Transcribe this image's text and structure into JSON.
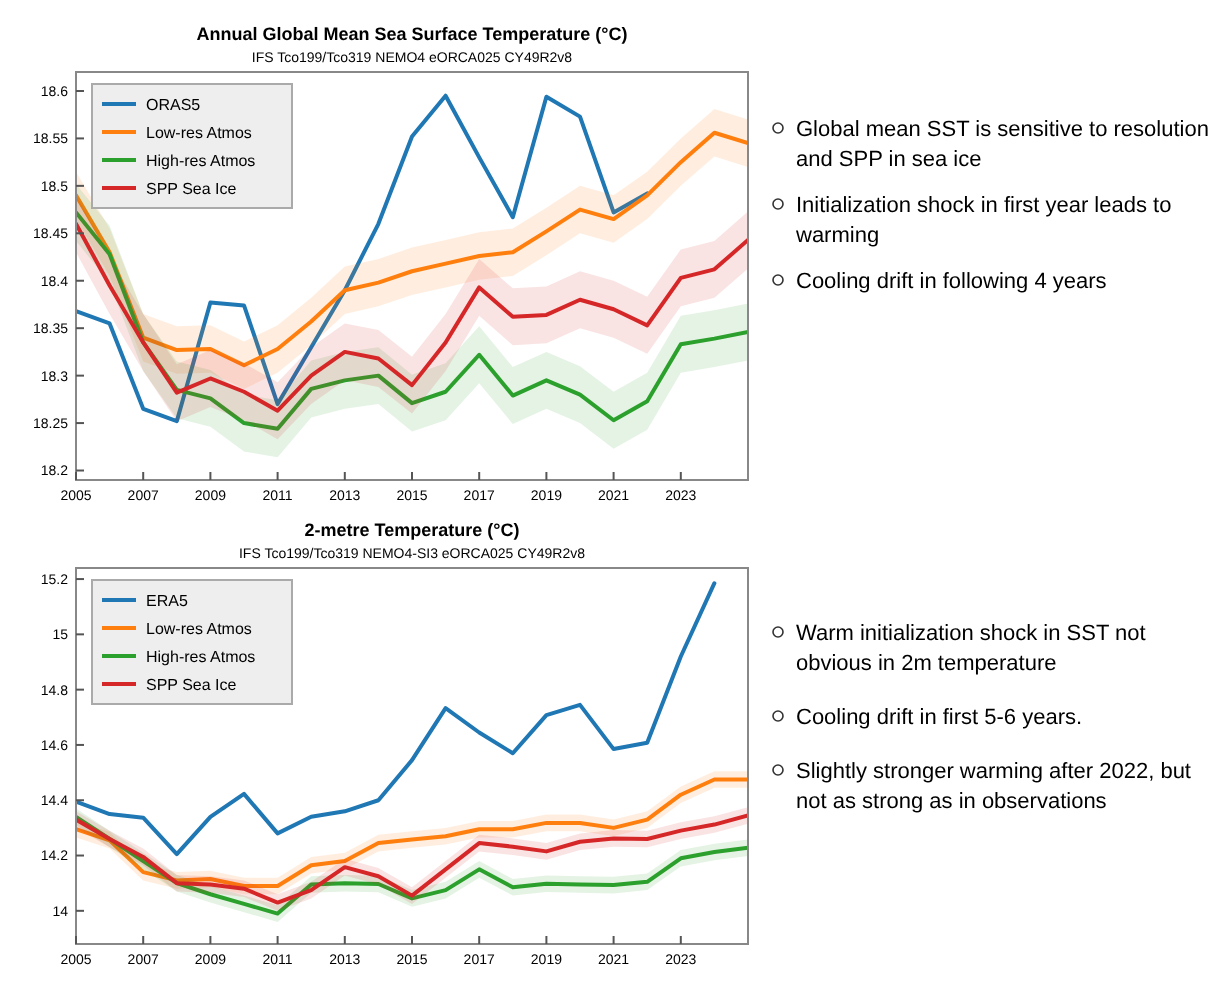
{
  "chart_data": [
    {
      "type": "line",
      "title": "Annual Global Mean Sea Surface Temperature (°C)",
      "subtitle": "IFS Tco199/Tco319    NEMO4 eORCA025    CY49R2v8",
      "x": [
        2005,
        2006,
        2007,
        2008,
        2009,
        2010,
        2011,
        2012,
        2013,
        2014,
        2015,
        2016,
        2017,
        2018,
        2019,
        2020,
        2021,
        2022,
        2023,
        2024,
        2025
      ],
      "xlim": [
        2005,
        2025
      ],
      "xticks": [
        2005,
        2007,
        2009,
        2011,
        2013,
        2015,
        2017,
        2019,
        2021,
        2023
      ],
      "ylim": [
        18.19,
        18.62
      ],
      "yticks": [
        18.2,
        18.25,
        18.3,
        18.35,
        18.4,
        18.45,
        18.5,
        18.55,
        18.6
      ],
      "legend": "top left",
      "grid": false,
      "marker": "none",
      "line_style": "solid",
      "series": [
        {
          "name": "ORAS5",
          "color": "#1f77b4",
          "x": [
            2005,
            2006,
            2007,
            2008,
            2009,
            2010,
            2011,
            2012,
            2013,
            2014,
            2015,
            2016,
            2017,
            2018,
            2019,
            2020,
            2021,
            2022
          ],
          "values": [
            18.368,
            18.355,
            18.265,
            18.252,
            18.377,
            18.374,
            18.27,
            18.33,
            18.39,
            18.46,
            18.552,
            18.595,
            18.53,
            18.467,
            18.594,
            18.573,
            18.472,
            18.492
          ]
        },
        {
          "name": "Low-res Atmos",
          "color": "#ff7f0e",
          "values": [
            18.49,
            18.43,
            18.34,
            18.327,
            18.328,
            18.311,
            18.328,
            18.357,
            18.39,
            18.398,
            18.41,
            18.418,
            18.426,
            18.43,
            18.452,
            18.475,
            18.465,
            18.49,
            18.525,
            18.556,
            18.545
          ],
          "lower": [
            18.465,
            18.405,
            18.315,
            18.302,
            18.303,
            18.286,
            18.303,
            18.332,
            18.365,
            18.373,
            18.385,
            18.393,
            18.401,
            18.405,
            18.427,
            18.45,
            18.44,
            18.465,
            18.5,
            18.531,
            18.52
          ],
          "upper": [
            18.515,
            18.455,
            18.365,
            18.352,
            18.353,
            18.336,
            18.353,
            18.382,
            18.415,
            18.423,
            18.435,
            18.443,
            18.451,
            18.455,
            18.477,
            18.5,
            18.49,
            18.515,
            18.55,
            18.581,
            18.57
          ]
        },
        {
          "name": "High-res Atmos",
          "color": "#2ca02c",
          "values": [
            18.472,
            18.428,
            18.335,
            18.285,
            18.276,
            18.25,
            18.244,
            18.286,
            18.295,
            18.3,
            18.271,
            18.283,
            18.322,
            18.279,
            18.295,
            18.28,
            18.253,
            18.273,
            18.333,
            18.339,
            18.346
          ],
          "lower": [
            18.442,
            18.398,
            18.305,
            18.255,
            18.246,
            18.22,
            18.214,
            18.256,
            18.265,
            18.27,
            18.241,
            18.253,
            18.292,
            18.249,
            18.265,
            18.25,
            18.223,
            18.243,
            18.303,
            18.309,
            18.316
          ],
          "upper": [
            18.502,
            18.458,
            18.365,
            18.315,
            18.306,
            18.28,
            18.274,
            18.316,
            18.325,
            18.33,
            18.301,
            18.313,
            18.352,
            18.309,
            18.325,
            18.31,
            18.283,
            18.303,
            18.363,
            18.369,
            18.376
          ]
        },
        {
          "name": "SPP Sea Ice",
          "color": "#d62728",
          "values": [
            18.46,
            18.395,
            18.335,
            18.282,
            18.297,
            18.283,
            18.263,
            18.3,
            18.325,
            18.318,
            18.29,
            18.335,
            18.393,
            18.362,
            18.364,
            18.38,
            18.37,
            18.353,
            18.403,
            18.412,
            18.443
          ],
          "lower": [
            18.43,
            18.365,
            18.305,
            18.252,
            18.267,
            18.253,
            18.233,
            18.27,
            18.295,
            18.288,
            18.26,
            18.305,
            18.363,
            18.332,
            18.334,
            18.35,
            18.34,
            18.323,
            18.373,
            18.382,
            18.413
          ],
          "upper": [
            18.49,
            18.425,
            18.365,
            18.312,
            18.327,
            18.313,
            18.293,
            18.33,
            18.355,
            18.348,
            18.32,
            18.365,
            18.423,
            18.392,
            18.394,
            18.41,
            18.4,
            18.383,
            18.433,
            18.442,
            18.473
          ]
        }
      ],
      "annotations": [
        "Global mean SST is sensitive to resolution and SPP in sea ice",
        "Initialization shock in first year leads to warming",
        "Cooling drift in following 4 years"
      ]
    },
    {
      "type": "line",
      "title": "2-metre Temperature (°C)",
      "subtitle": "IFS Tco199/Tco319    NEMO4-SI3 eORCA025    CY49R2v8",
      "x": [
        2005,
        2006,
        2007,
        2008,
        2009,
        2010,
        2011,
        2012,
        2013,
        2014,
        2015,
        2016,
        2017,
        2018,
        2019,
        2020,
        2021,
        2022,
        2023,
        2024,
        2025
      ],
      "xlim": [
        2005,
        2025
      ],
      "xticks": [
        2005,
        2007,
        2009,
        2011,
        2013,
        2015,
        2017,
        2019,
        2021,
        2023
      ],
      "ylim": [
        13.88,
        15.24
      ],
      "yticks": [
        14,
        14.2,
        14.4,
        14.6,
        14.8,
        15,
        15.2
      ],
      "legend": "top left",
      "grid": false,
      "marker": "none",
      "line_style": "solid",
      "series": [
        {
          "name": "ERA5",
          "color": "#1f77b4",
          "x": [
            2005,
            2006,
            2007,
            2008,
            2009,
            2010,
            2011,
            2012,
            2013,
            2014,
            2015,
            2016,
            2017,
            2018,
            2019,
            2020,
            2021,
            2022,
            2023,
            2024
          ],
          "values": [
            14.395,
            14.35,
            14.337,
            14.205,
            14.34,
            14.423,
            14.28,
            14.34,
            14.36,
            14.4,
            14.545,
            14.733,
            14.645,
            14.57,
            14.708,
            14.745,
            14.585,
            14.608,
            14.92,
            15.185
          ]
        },
        {
          "name": "Low-res Atmos",
          "color": "#ff7f0e",
          "values": [
            14.295,
            14.255,
            14.14,
            14.11,
            14.115,
            14.09,
            14.09,
            14.165,
            14.18,
            14.245,
            14.258,
            14.27,
            14.295,
            14.295,
            14.318,
            14.318,
            14.3,
            14.33,
            14.42,
            14.475,
            14.475
          ],
          "lower": [
            14.265,
            14.225,
            14.11,
            14.08,
            14.085,
            14.06,
            14.06,
            14.135,
            14.15,
            14.215,
            14.228,
            14.24,
            14.265,
            14.265,
            14.288,
            14.288,
            14.27,
            14.3,
            14.39,
            14.445,
            14.445
          ],
          "upper": [
            14.325,
            14.285,
            14.17,
            14.14,
            14.145,
            14.12,
            14.12,
            14.195,
            14.21,
            14.275,
            14.288,
            14.3,
            14.325,
            14.325,
            14.348,
            14.348,
            14.33,
            14.36,
            14.45,
            14.505,
            14.505
          ]
        },
        {
          "name": "High-res Atmos",
          "color": "#2ca02c",
          "values": [
            14.34,
            14.26,
            14.18,
            14.1,
            14.06,
            14.025,
            13.99,
            14.095,
            14.1,
            14.097,
            14.045,
            14.075,
            14.15,
            14.085,
            14.098,
            14.095,
            14.093,
            14.105,
            14.19,
            14.213,
            14.228
          ],
          "lower": [
            14.31,
            14.23,
            14.15,
            14.07,
            14.03,
            13.995,
            13.96,
            14.065,
            14.07,
            14.067,
            14.015,
            14.045,
            14.12,
            14.055,
            14.068,
            14.065,
            14.063,
            14.075,
            14.16,
            14.183,
            14.198
          ],
          "upper": [
            14.37,
            14.29,
            14.21,
            14.13,
            14.09,
            14.055,
            14.02,
            14.125,
            14.13,
            14.127,
            14.075,
            14.105,
            14.18,
            14.115,
            14.128,
            14.125,
            14.123,
            14.135,
            14.22,
            14.243,
            14.258
          ]
        },
        {
          "name": "SPP Sea Ice",
          "color": "#d62728",
          "values": [
            14.33,
            14.26,
            14.195,
            14.1,
            14.095,
            14.08,
            14.03,
            14.075,
            14.158,
            14.125,
            14.055,
            14.15,
            14.245,
            14.232,
            14.215,
            14.25,
            14.262,
            14.26,
            14.29,
            14.312,
            14.345
          ],
          "lower": [
            14.3,
            14.23,
            14.165,
            14.07,
            14.065,
            14.05,
            14,
            14.045,
            14.128,
            14.095,
            14.025,
            14.12,
            14.215,
            14.202,
            14.185,
            14.22,
            14.232,
            14.23,
            14.26,
            14.282,
            14.315
          ],
          "upper": [
            14.36,
            14.29,
            14.225,
            14.13,
            14.125,
            14.11,
            14.06,
            14.105,
            14.188,
            14.155,
            14.085,
            14.18,
            14.275,
            14.262,
            14.245,
            14.28,
            14.292,
            14.29,
            14.32,
            14.342,
            14.375
          ]
        }
      ],
      "annotations": [
        "Warm initialization shock in SST not obvious in 2m temperature",
        "Cooling drift in first 5-6 years.",
        "Slightly stronger warming after 2022, but not as strong as in observations"
      ]
    }
  ]
}
